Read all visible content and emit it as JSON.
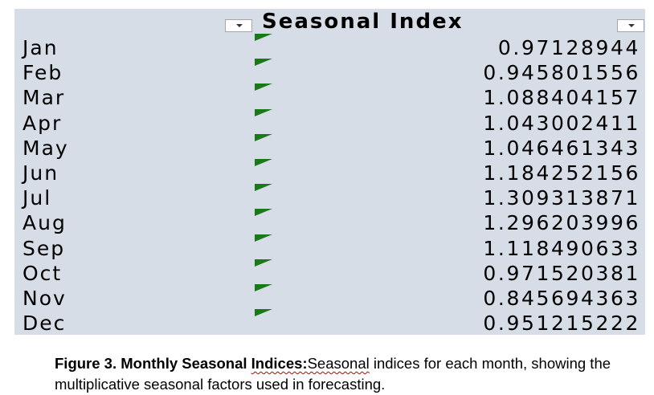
{
  "sheet": {
    "header": "Seasonal Index",
    "rows": [
      {
        "month": "Jan",
        "index": "0.97128944"
      },
      {
        "month": "Feb",
        "index": "0.945801556"
      },
      {
        "month": "Mar",
        "index": "1.088404157"
      },
      {
        "month": "Apr",
        "index": "1.043002411"
      },
      {
        "month": "May",
        "index": "1.046461343"
      },
      {
        "month": "Jun",
        "index": "1.184252156"
      },
      {
        "month": "Jul",
        "index": "1.309313871"
      },
      {
        "month": "Aug",
        "index": "1.296203996"
      },
      {
        "month": "Sep",
        "index": "1.118490633"
      },
      {
        "month": "Oct",
        "index": "0.971520381"
      },
      {
        "month": "Nov",
        "index": "0.845694363"
      },
      {
        "month": "Dec",
        "index": "0.951215222"
      }
    ],
    "indicator_color": "#1a7a1a",
    "icons": {
      "filter": "dropdown-arrow-icon",
      "error": "green-triangle-icon"
    }
  },
  "caption": {
    "label": "Figure 3. Monthly Seasonal ",
    "label_squiggle": "Indices:",
    "squiggle_text": "Seasonal",
    "text": " indices for each month, showing the multiplicative seasonal factors used in forecasting."
  }
}
